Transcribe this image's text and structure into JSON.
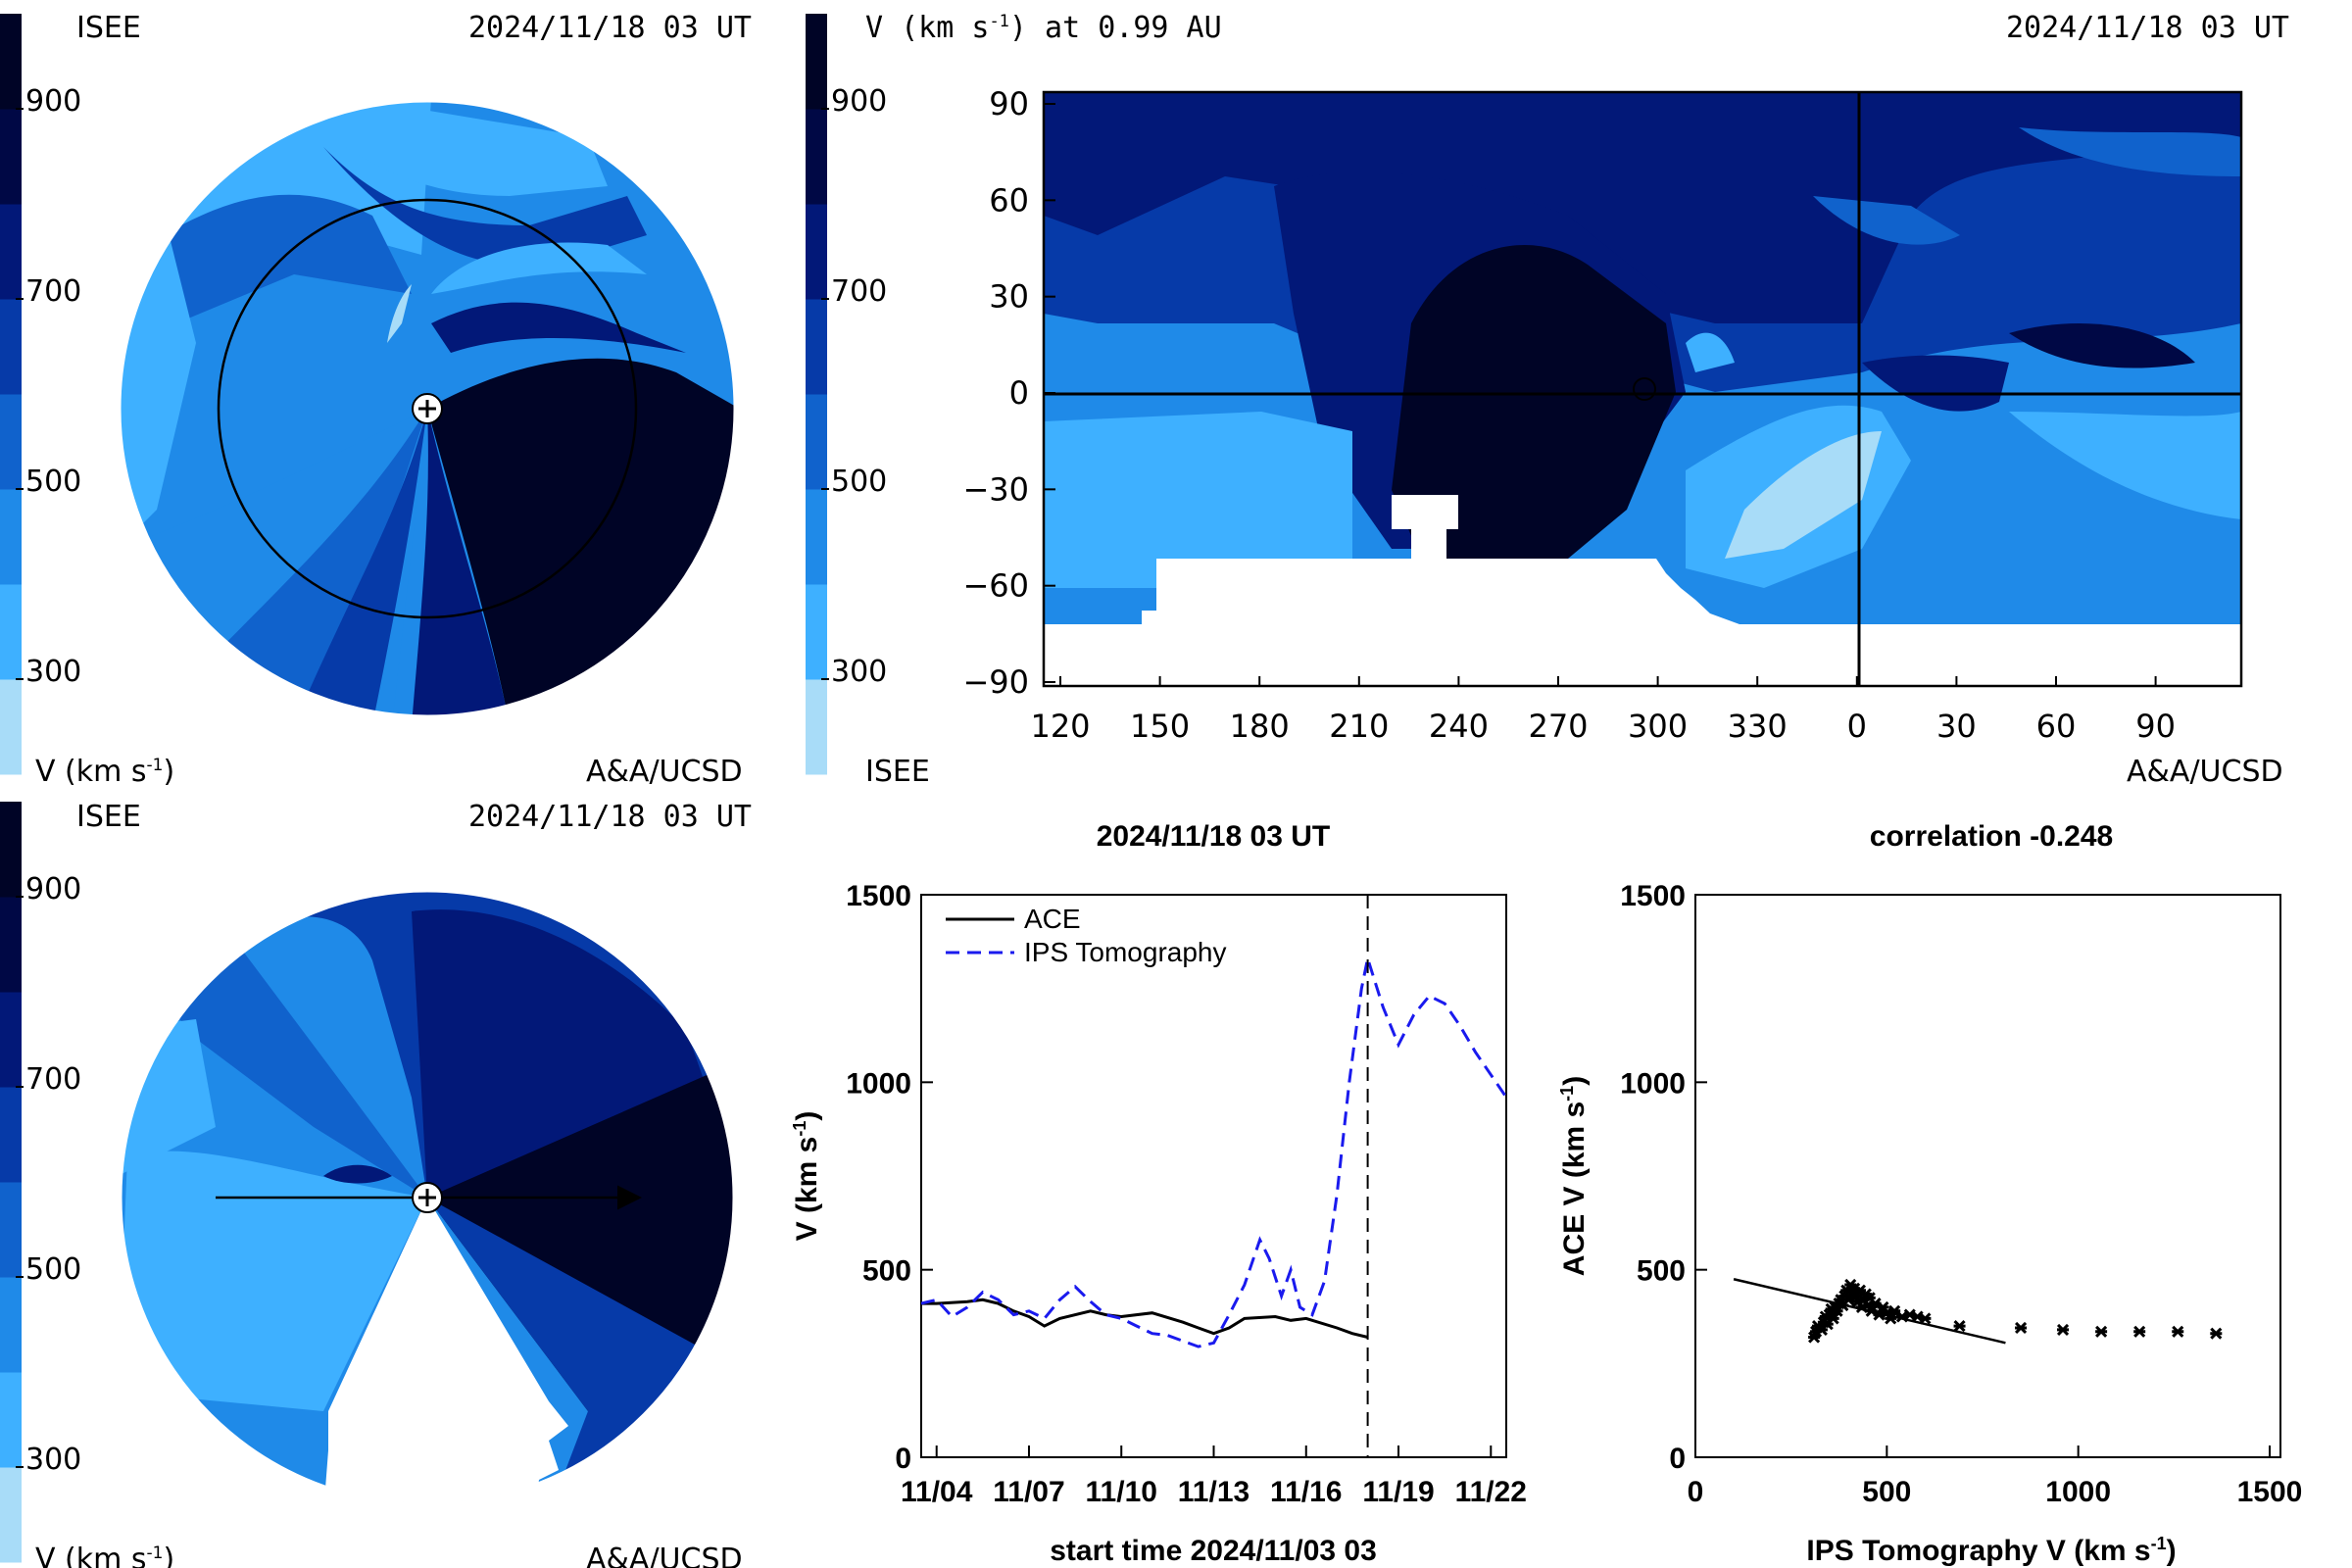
{
  "colors": {
    "scale": [
      "#a8dcf8",
      "#3eb0ff",
      "#1f8ae8",
      "#1062cc",
      "#063aa8",
      "#021878",
      "#000845",
      "#000426"
    ],
    "tomography_line": "#1a1aee",
    "ace_line": "#000000"
  },
  "panel_tl": {
    "source": "ISEE",
    "time": "2024/11/18 03 UT",
    "colorbar_ticks": [
      "900",
      "700",
      "500",
      "300"
    ],
    "unit_label": "V (km s",
    "unit_exp": "-1",
    "unit_close": ")",
    "credit": "A&A/UCSD",
    "icons": [
      "sun-icon",
      "earth-orbit-icon"
    ]
  },
  "panel_tr": {
    "title": "V (km s",
    "title_exp": "-1",
    "title_tail": ") at 0.99 AU",
    "time": "2024/11/18 03 UT",
    "colorbar_ticks": [
      "900",
      "700",
      "500",
      "300"
    ],
    "source": "ISEE",
    "credit": "A&A/UCSD"
  },
  "panel_bl": {
    "source": "ISEE",
    "time": "2024/11/18 03 UT",
    "colorbar_ticks": [
      "900",
      "700",
      "500",
      "300"
    ],
    "unit_label": "V (km s",
    "unit_exp": "-1",
    "unit_close": ")",
    "credit": "A&A/UCSD"
  },
  "chart_data": [
    {
      "type": "heatmap",
      "title": "V (km s-1) at 0.99 AU",
      "xticks": [
        "120",
        "150",
        "180",
        "210",
        "240",
        "270",
        "300",
        "330",
        "0",
        "30",
        "60",
        "90"
      ],
      "yticks": [
        "90",
        "60",
        "30",
        "0",
        "−30",
        "−60",
        "−90"
      ],
      "ylim": [
        -90,
        90
      ],
      "colorbar_range": [
        200,
        1000
      ]
    },
    {
      "type": "line",
      "title": "2024/11/18 03 UT",
      "xlabel": "start time 2024/11/03 03",
      "ylabel": "V (km s",
      "ylabel_exp": "-1",
      "ylabel_close": ")",
      "xlim": [
        0.5,
        19.5
      ],
      "ylim": [
        0,
        1500
      ],
      "xticks": [
        {
          "v": 1,
          "label": "11/04"
        },
        {
          "v": 4,
          "label": "11/07"
        },
        {
          "v": 7,
          "label": "11/10"
        },
        {
          "v": 10,
          "label": "11/13"
        },
        {
          "v": 13,
          "label": "11/16"
        },
        {
          "v": 16,
          "label": "11/19"
        },
        {
          "v": 19,
          "label": "11/22"
        }
      ],
      "yticks": [
        0,
        500,
        1000,
        1500
      ],
      "current_time": 15.0,
      "legend": [
        "ACE",
        "IPS Tomography"
      ],
      "series": [
        {
          "name": "ACE",
          "style": "solid",
          "x": [
            0.5,
            1.0,
            2.0,
            2.5,
            3.0,
            3.5,
            4.0,
            4.5,
            5.0,
            6.0,
            6.5,
            7.0,
            8.0,
            9.0,
            9.5,
            10.0,
            10.5,
            11.0,
            12.0,
            12.5,
            13.0,
            14.0,
            14.5,
            15.0
          ],
          "y": [
            410,
            410,
            415,
            420,
            410,
            390,
            375,
            350,
            370,
            390,
            380,
            375,
            385,
            360,
            345,
            330,
            345,
            370,
            375,
            365,
            370,
            345,
            330,
            320
          ]
        },
        {
          "name": "IPS Tomography",
          "style": "dashed",
          "x": [
            0.5,
            1.0,
            1.5,
            2.0,
            2.5,
            3.0,
            3.5,
            4.0,
            4.5,
            5.0,
            5.5,
            6.0,
            6.5,
            7.0,
            7.5,
            8.0,
            8.5,
            9.0,
            9.5,
            10.0,
            10.5,
            11.0,
            11.5,
            11.8,
            12.2,
            12.5,
            12.8,
            13.2,
            13.6,
            14.0,
            14.4,
            14.8,
            15.0,
            15.5,
            16.0,
            16.5,
            17.0,
            17.5,
            18.0,
            18.5,
            19.0,
            19.5
          ],
          "y": [
            410,
            420,
            375,
            400,
            440,
            420,
            380,
            390,
            370,
            420,
            455,
            415,
            380,
            370,
            350,
            330,
            325,
            310,
            295,
            305,
            380,
            460,
            580,
            530,
            430,
            500,
            400,
            380,
            470,
            700,
            1000,
            1250,
            1330,
            1200,
            1100,
            1180,
            1230,
            1210,
            1150,
            1080,
            1020,
            960
          ]
        }
      ]
    },
    {
      "type": "scatter",
      "title": "correlation -0.248",
      "xlabel": "IPS Tomography V (km s",
      "xlabel_exp": "-1",
      "xlabel_close": ")",
      "ylabel": "ACE V (km s",
      "ylabel_exp": "-1",
      "ylabel_close": ")",
      "xlim": [
        0,
        1500
      ],
      "ylim": [
        0,
        1500
      ],
      "ticks": [
        0,
        500,
        1000,
        1500
      ],
      "fit_line": {
        "x": [
          100,
          810
        ],
        "y": [
          475,
          305
        ]
      },
      "points": [
        [
          310,
          320
        ],
        [
          315,
          335
        ],
        [
          320,
          350
        ],
        [
          330,
          340
        ],
        [
          335,
          360
        ],
        [
          340,
          375
        ],
        [
          345,
          355
        ],
        [
          350,
          380
        ],
        [
          355,
          395
        ],
        [
          360,
          370
        ],
        [
          365,
          400
        ],
        [
          370,
          390
        ],
        [
          375,
          410
        ],
        [
          380,
          420
        ],
        [
          385,
          405
        ],
        [
          390,
          430
        ],
        [
          395,
          445
        ],
        [
          400,
          420
        ],
        [
          405,
          460
        ],
        [
          410,
          440
        ],
        [
          415,
          450
        ],
        [
          420,
          430
        ],
        [
          425,
          415
        ],
        [
          430,
          445
        ],
        [
          435,
          400
        ],
        [
          440,
          420
        ],
        [
          445,
          435
        ],
        [
          450,
          405
        ],
        [
          455,
          425
        ],
        [
          460,
          390
        ],
        [
          470,
          410
        ],
        [
          480,
          380
        ],
        [
          490,
          400
        ],
        [
          500,
          385
        ],
        [
          510,
          370
        ],
        [
          520,
          390
        ],
        [
          540,
          375
        ],
        [
          560,
          380
        ],
        [
          580,
          375
        ],
        [
          600,
          370
        ],
        [
          690,
          350
        ],
        [
          850,
          345
        ],
        [
          960,
          340
        ],
        [
          1060,
          335
        ],
        [
          1160,
          335
        ],
        [
          1260,
          335
        ],
        [
          1360,
          330
        ]
      ]
    }
  ]
}
